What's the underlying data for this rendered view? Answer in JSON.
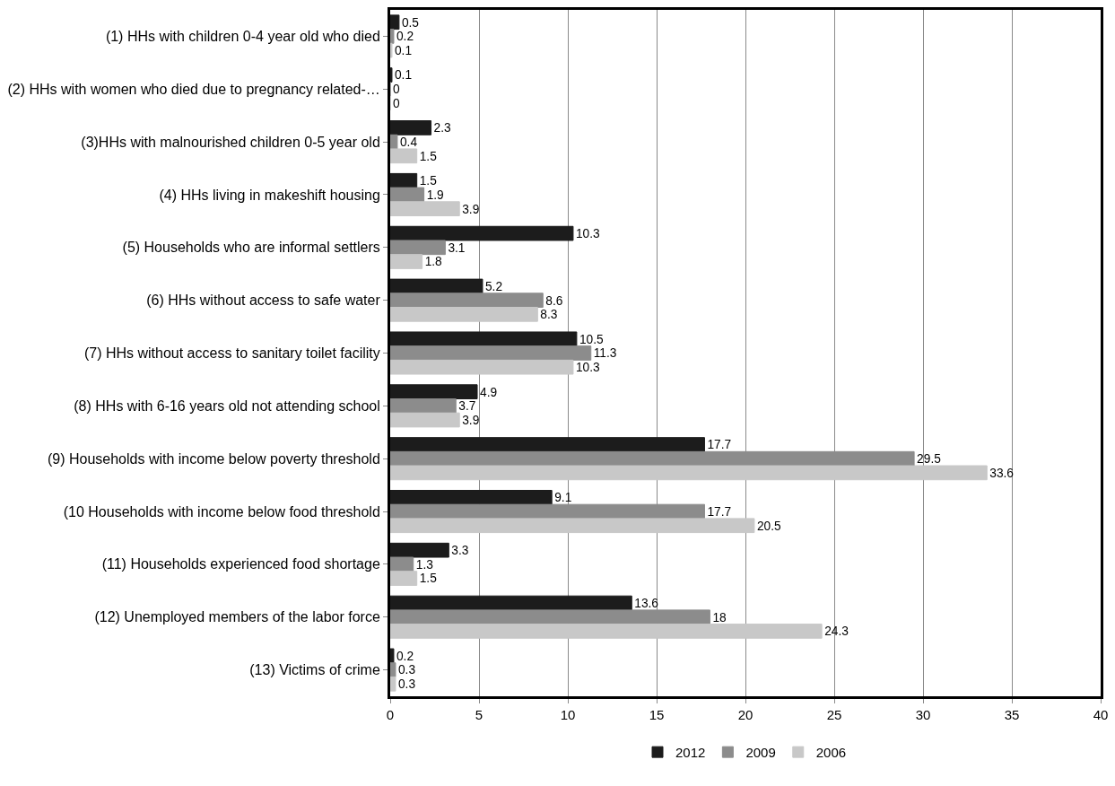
{
  "chart_data": {
    "type": "bar",
    "orientation": "horizontal",
    "categories": [
      "(1) HHs with children 0-4 year old who died",
      "(2) HHs with women who died due to pregnancy related-…",
      "(3)HHs with malnourished children 0-5 year old",
      "(4) HHs living in makeshift housing",
      "(5) Households who are informal settlers",
      "(6) HHs without access to safe water",
      "(7) HHs without access to sanitary toilet facility",
      "(8) HHs with 6-16 years old not attending school",
      "(9) Households with income below poverty threshold",
      "(10 Households with income below food threshold",
      "(11) Households experienced food shortage",
      "(12) Unemployed members of the labor force",
      "(13) Victims of crime"
    ],
    "series": [
      {
        "name": "2012",
        "color": "#1c1c1c",
        "values": [
          0.5,
          0.1,
          2.3,
          1.5,
          10.3,
          5.2,
          10.5,
          4.9,
          17.7,
          9.1,
          3.3,
          13.6,
          0.2
        ]
      },
      {
        "name": "2009",
        "color": "#8c8c8c",
        "values": [
          0.2,
          0,
          0.4,
          1.9,
          3.1,
          8.6,
          11.3,
          3.7,
          29.5,
          17.7,
          1.3,
          18,
          0.3
        ]
      },
      {
        "name": "2006",
        "color": "#c8c8c8",
        "values": [
          0.1,
          0,
          1.5,
          3.9,
          1.8,
          8.3,
          10.3,
          3.9,
          33.6,
          20.5,
          1.5,
          24.3,
          0.3
        ]
      }
    ],
    "xlim": [
      0,
      40
    ],
    "xticks": [
      0,
      5,
      10,
      15,
      20,
      25,
      30,
      35,
      40
    ],
    "grid": "x",
    "legend": "bottom",
    "data_labels": true
  }
}
